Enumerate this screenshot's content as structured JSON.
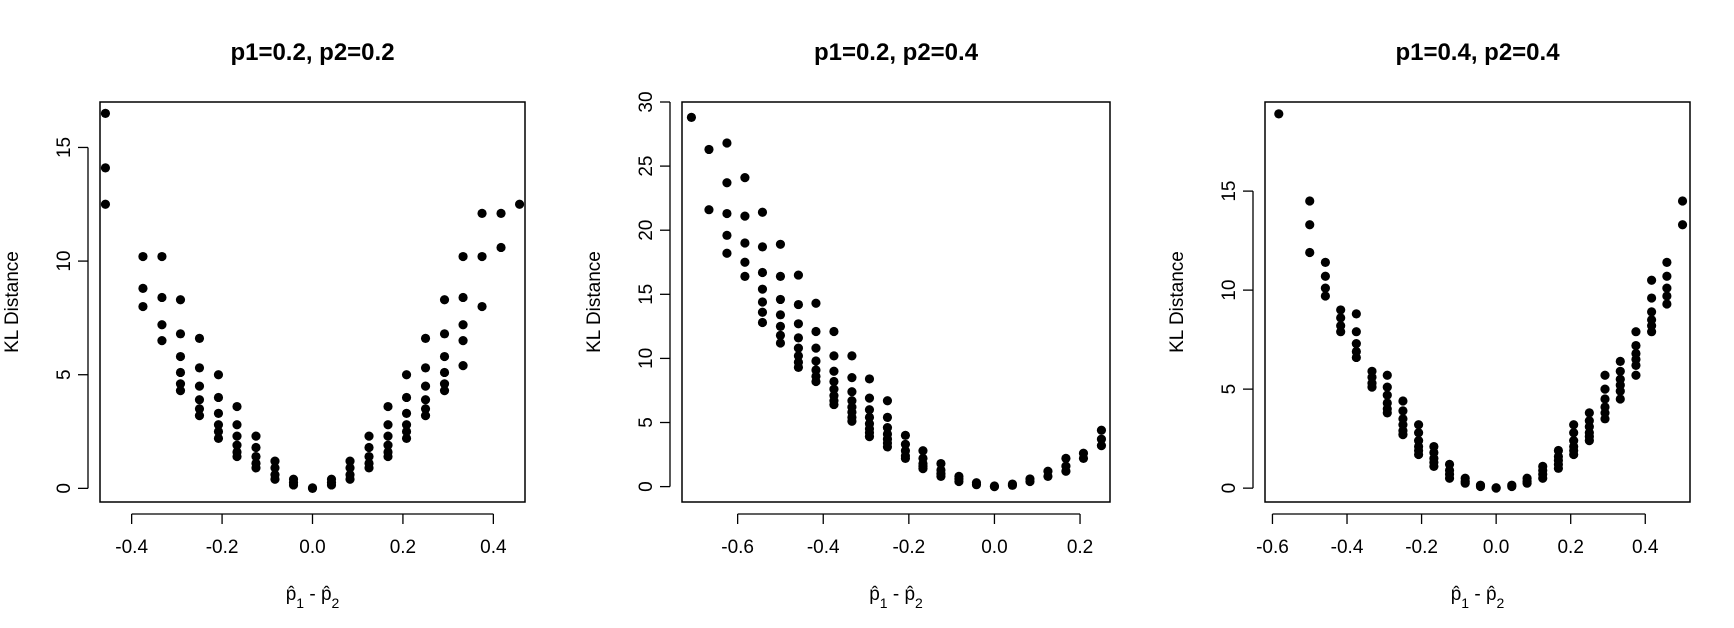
{
  "chart_data": [
    {
      "type": "scatter",
      "title": "p1=0.2, p2=0.2",
      "xlabel": "p̂1 - p̂2",
      "ylabel": "KL Distance",
      "xlim": [
        -0.47,
        0.47
      ],
      "ylim": [
        -0.6,
        17
      ],
      "xticks": [
        -0.4,
        -0.2,
        0.0,
        0.2,
        0.4
      ],
      "xtick_labels": [
        "-0.4",
        "-0.2",
        "0.0",
        "0.2",
        "0.4"
      ],
      "yticks": [
        0,
        5,
        10,
        15
      ],
      "ytick_labels": [
        "0",
        "5",
        "10",
        "15"
      ],
      "marker_color": "#000000",
      "points": [
        [
          -0.458,
          16.5
        ],
        [
          -0.458,
          14.1
        ],
        [
          -0.458,
          12.5
        ],
        [
          -0.375,
          10.2
        ],
        [
          -0.375,
          8.8
        ],
        [
          -0.375,
          8.0
        ],
        [
          -0.333,
          10.2
        ],
        [
          -0.333,
          8.4
        ],
        [
          -0.333,
          7.2
        ],
        [
          -0.333,
          6.5
        ],
        [
          -0.292,
          8.3
        ],
        [
          -0.292,
          6.8
        ],
        [
          -0.292,
          5.8
        ],
        [
          -0.292,
          5.1
        ],
        [
          -0.292,
          4.6
        ],
        [
          -0.292,
          4.3
        ],
        [
          -0.25,
          6.6
        ],
        [
          -0.25,
          5.3
        ],
        [
          -0.25,
          4.5
        ],
        [
          -0.25,
          3.9
        ],
        [
          -0.25,
          3.5
        ],
        [
          -0.25,
          3.2
        ],
        [
          -0.208,
          5.0
        ],
        [
          -0.208,
          4.0
        ],
        [
          -0.208,
          3.3
        ],
        [
          -0.208,
          2.8
        ],
        [
          -0.208,
          2.5
        ],
        [
          -0.208,
          2.2
        ],
        [
          -0.167,
          3.6
        ],
        [
          -0.167,
          2.8
        ],
        [
          -0.167,
          2.3
        ],
        [
          -0.167,
          1.9
        ],
        [
          -0.167,
          1.6
        ],
        [
          -0.167,
          1.4
        ],
        [
          -0.125,
          2.3
        ],
        [
          -0.125,
          1.8
        ],
        [
          -0.125,
          1.4
        ],
        [
          -0.125,
          1.1
        ],
        [
          -0.125,
          0.9
        ],
        [
          -0.083,
          1.2
        ],
        [
          -0.083,
          0.9
        ],
        [
          -0.083,
          0.6
        ],
        [
          -0.083,
          0.4
        ],
        [
          -0.042,
          0.4
        ],
        [
          -0.042,
          0.25
        ],
        [
          -0.042,
          0.15
        ],
        [
          0.0,
          0.02
        ],
        [
          0.0,
          0.0
        ],
        [
          0.042,
          0.4
        ],
        [
          0.042,
          0.25
        ],
        [
          0.042,
          0.15
        ],
        [
          0.083,
          1.2
        ],
        [
          0.083,
          0.9
        ],
        [
          0.083,
          0.6
        ],
        [
          0.083,
          0.4
        ],
        [
          0.125,
          2.3
        ],
        [
          0.125,
          1.8
        ],
        [
          0.125,
          1.4
        ],
        [
          0.125,
          1.1
        ],
        [
          0.125,
          0.9
        ],
        [
          0.167,
          3.6
        ],
        [
          0.167,
          2.8
        ],
        [
          0.167,
          2.3
        ],
        [
          0.167,
          1.9
        ],
        [
          0.167,
          1.6
        ],
        [
          0.167,
          1.4
        ],
        [
          0.208,
          5.0
        ],
        [
          0.208,
          4.0
        ],
        [
          0.208,
          3.3
        ],
        [
          0.208,
          2.8
        ],
        [
          0.208,
          2.5
        ],
        [
          0.208,
          2.2
        ],
        [
          0.25,
          6.6
        ],
        [
          0.25,
          5.3
        ],
        [
          0.25,
          4.5
        ],
        [
          0.25,
          3.9
        ],
        [
          0.25,
          3.5
        ],
        [
          0.25,
          3.2
        ],
        [
          0.292,
          8.3
        ],
        [
          0.292,
          6.8
        ],
        [
          0.292,
          5.8
        ],
        [
          0.292,
          5.1
        ],
        [
          0.292,
          4.6
        ],
        [
          0.292,
          4.3
        ],
        [
          0.333,
          10.2
        ],
        [
          0.333,
          8.4
        ],
        [
          0.333,
          7.2
        ],
        [
          0.333,
          6.5
        ],
        [
          0.333,
          5.4
        ],
        [
          0.375,
          12.1
        ],
        [
          0.375,
          10.2
        ],
        [
          0.375,
          8.0
        ],
        [
          0.417,
          12.1
        ],
        [
          0.417,
          10.6
        ],
        [
          0.458,
          12.5
        ]
      ]
    },
    {
      "type": "scatter",
      "title": "p1=0.2, p2=0.4",
      "xlabel": "p̂1 - p̂2",
      "ylabel": "KL Distance",
      "xlim": [
        -0.73,
        0.27
      ],
      "ylim": [
        -1.2,
        30
      ],
      "xticks": [
        -0.6,
        -0.4,
        -0.2,
        0.0,
        0.2
      ],
      "xtick_labels": [
        "-0.6",
        "-0.4",
        "-0.2",
        "0.0",
        "0.2"
      ],
      "yticks": [
        0,
        5,
        10,
        15,
        20,
        25,
        30
      ],
      "ytick_labels": [
        "0",
        "5",
        "10",
        "15",
        "20",
        "25",
        "30"
      ],
      "marker_color": "#000000",
      "points": [
        [
          -0.708,
          28.8
        ],
        [
          -0.667,
          26.3
        ],
        [
          -0.667,
          21.6
        ],
        [
          -0.625,
          26.8
        ],
        [
          -0.625,
          23.7
        ],
        [
          -0.625,
          21.3
        ],
        [
          -0.625,
          19.6
        ],
        [
          -0.625,
          18.2
        ],
        [
          -0.583,
          24.1
        ],
        [
          -0.583,
          21.1
        ],
        [
          -0.583,
          19.0
        ],
        [
          -0.583,
          17.5
        ],
        [
          -0.583,
          16.4
        ],
        [
          -0.542,
          21.4
        ],
        [
          -0.542,
          18.7
        ],
        [
          -0.542,
          16.7
        ],
        [
          -0.542,
          15.4
        ],
        [
          -0.542,
          14.4
        ],
        [
          -0.542,
          13.6
        ],
        [
          -0.542,
          12.8
        ],
        [
          -0.5,
          18.9
        ],
        [
          -0.5,
          16.4
        ],
        [
          -0.5,
          14.6
        ],
        [
          -0.5,
          13.4
        ],
        [
          -0.5,
          12.5
        ],
        [
          -0.5,
          11.8
        ],
        [
          -0.5,
          11.2
        ],
        [
          -0.458,
          16.5
        ],
        [
          -0.458,
          14.2
        ],
        [
          -0.458,
          12.7
        ],
        [
          -0.458,
          11.6
        ],
        [
          -0.458,
          10.8
        ],
        [
          -0.458,
          10.2
        ],
        [
          -0.458,
          9.7
        ],
        [
          -0.458,
          9.3
        ],
        [
          -0.417,
          14.3
        ],
        [
          -0.417,
          12.1
        ],
        [
          -0.417,
          10.8
        ],
        [
          -0.417,
          9.8
        ],
        [
          -0.417,
          9.1
        ],
        [
          -0.417,
          8.6
        ],
        [
          -0.417,
          8.2
        ],
        [
          -0.375,
          12.1
        ],
        [
          -0.375,
          10.2
        ],
        [
          -0.375,
          9.0
        ],
        [
          -0.375,
          8.2
        ],
        [
          -0.375,
          7.6
        ],
        [
          -0.375,
          7.1
        ],
        [
          -0.375,
          6.7
        ],
        [
          -0.375,
          6.4
        ],
        [
          -0.333,
          10.2
        ],
        [
          -0.333,
          8.5
        ],
        [
          -0.333,
          7.4
        ],
        [
          -0.333,
          6.7
        ],
        [
          -0.333,
          6.2
        ],
        [
          -0.333,
          5.8
        ],
        [
          -0.333,
          5.4
        ],
        [
          -0.333,
          5.1
        ],
        [
          -0.292,
          8.4
        ],
        [
          -0.292,
          6.9
        ],
        [
          -0.292,
          6.0
        ],
        [
          -0.292,
          5.4
        ],
        [
          -0.292,
          4.9
        ],
        [
          -0.292,
          4.5
        ],
        [
          -0.292,
          4.2
        ],
        [
          -0.292,
          3.9
        ],
        [
          -0.25,
          6.7
        ],
        [
          -0.25,
          5.4
        ],
        [
          -0.25,
          4.6
        ],
        [
          -0.25,
          4.1
        ],
        [
          -0.25,
          3.7
        ],
        [
          -0.25,
          3.4
        ],
        [
          -0.25,
          3.1
        ],
        [
          -0.208,
          4.0
        ],
        [
          -0.208,
          3.3
        ],
        [
          -0.208,
          2.8
        ],
        [
          -0.208,
          2.4
        ],
        [
          -0.208,
          2.2
        ],
        [
          -0.167,
          2.8
        ],
        [
          -0.167,
          2.2
        ],
        [
          -0.167,
          1.8
        ],
        [
          -0.167,
          1.6
        ],
        [
          -0.167,
          1.4
        ],
        [
          -0.125,
          1.8
        ],
        [
          -0.125,
          1.3
        ],
        [
          -0.125,
          1.0
        ],
        [
          -0.125,
          0.8
        ],
        [
          -0.083,
          0.8
        ],
        [
          -0.083,
          0.6
        ],
        [
          -0.083,
          0.4
        ],
        [
          -0.042,
          0.3
        ],
        [
          -0.042,
          0.15
        ],
        [
          0.0,
          0.05
        ],
        [
          0.0,
          0.0
        ],
        [
          0.042,
          0.2
        ],
        [
          0.042,
          0.1
        ],
        [
          0.083,
          0.6
        ],
        [
          0.083,
          0.4
        ],
        [
          0.125,
          1.2
        ],
        [
          0.125,
          0.8
        ],
        [
          0.167,
          2.2
        ],
        [
          0.167,
          1.6
        ],
        [
          0.167,
          1.2
        ],
        [
          0.208,
          2.6
        ],
        [
          0.208,
          2.2
        ],
        [
          0.25,
          4.4
        ],
        [
          0.25,
          3.7
        ],
        [
          0.25,
          3.2
        ]
      ]
    },
    {
      "type": "scatter",
      "title": "p1=0.4, p2=0.4",
      "xlabel": "p̂1 - p̂2",
      "ylabel": "KL Distance",
      "xlim": [
        -0.62,
        0.52
      ],
      "ylim": [
        -0.7,
        19.5
      ],
      "xticks": [
        -0.6,
        -0.4,
        -0.2,
        0.0,
        0.2,
        0.4
      ],
      "xtick_labels": [
        "-0.6",
        "-0.4",
        "-0.2",
        "0.0",
        "0.2",
        "0.4"
      ],
      "yticks": [
        0,
        5,
        10,
        15
      ],
      "ytick_labels": [
        "0",
        "5",
        "10",
        "15"
      ],
      "marker_color": "#000000",
      "points": [
        [
          -0.583,
          18.9
        ],
        [
          -0.5,
          14.5
        ],
        [
          -0.5,
          13.3
        ],
        [
          -0.5,
          11.9
        ],
        [
          -0.458,
          11.4
        ],
        [
          -0.458,
          10.7
        ],
        [
          -0.458,
          10.1
        ],
        [
          -0.458,
          9.7
        ],
        [
          -0.417,
          9.0
        ],
        [
          -0.417,
          8.6
        ],
        [
          -0.417,
          8.2
        ],
        [
          -0.417,
          7.9
        ],
        [
          -0.375,
          8.8
        ],
        [
          -0.375,
          7.9
        ],
        [
          -0.375,
          7.3
        ],
        [
          -0.375,
          6.9
        ],
        [
          -0.375,
          6.6
        ],
        [
          -0.333,
          5.9
        ],
        [
          -0.333,
          5.6
        ],
        [
          -0.333,
          5.3
        ],
        [
          -0.333,
          5.1
        ],
        [
          -0.292,
          5.7
        ],
        [
          -0.292,
          5.1
        ],
        [
          -0.292,
          4.7
        ],
        [
          -0.292,
          4.3
        ],
        [
          -0.292,
          4.0
        ],
        [
          -0.292,
          3.8
        ],
        [
          -0.25,
          4.4
        ],
        [
          -0.25,
          3.9
        ],
        [
          -0.25,
          3.5
        ],
        [
          -0.25,
          3.2
        ],
        [
          -0.25,
          2.9
        ],
        [
          -0.25,
          2.7
        ],
        [
          -0.208,
          3.2
        ],
        [
          -0.208,
          2.8
        ],
        [
          -0.208,
          2.4
        ],
        [
          -0.208,
          2.1
        ],
        [
          -0.208,
          1.9
        ],
        [
          -0.208,
          1.7
        ],
        [
          -0.167,
          2.1
        ],
        [
          -0.167,
          1.8
        ],
        [
          -0.167,
          1.5
        ],
        [
          -0.167,
          1.3
        ],
        [
          -0.167,
          1.1
        ],
        [
          -0.125,
          1.2
        ],
        [
          -0.125,
          0.9
        ],
        [
          -0.125,
          0.7
        ],
        [
          -0.125,
          0.5
        ],
        [
          -0.083,
          0.5
        ],
        [
          -0.083,
          0.35
        ],
        [
          -0.083,
          0.25
        ],
        [
          -0.042,
          0.15
        ],
        [
          -0.042,
          0.08
        ],
        [
          0.0,
          0.02
        ],
        [
          0.0,
          0.0
        ],
        [
          0.042,
          0.15
        ],
        [
          0.042,
          0.08
        ],
        [
          0.083,
          0.5
        ],
        [
          0.083,
          0.35
        ],
        [
          0.083,
          0.25
        ],
        [
          0.125,
          1.1
        ],
        [
          0.125,
          0.9
        ],
        [
          0.125,
          0.7
        ],
        [
          0.125,
          0.5
        ],
        [
          0.167,
          1.9
        ],
        [
          0.167,
          1.6
        ],
        [
          0.167,
          1.4
        ],
        [
          0.167,
          1.2
        ],
        [
          0.167,
          1.0
        ],
        [
          0.208,
          3.2
        ],
        [
          0.208,
          2.8
        ],
        [
          0.208,
          2.4
        ],
        [
          0.208,
          2.1
        ],
        [
          0.208,
          1.9
        ],
        [
          0.208,
          1.7
        ],
        [
          0.25,
          3.8
        ],
        [
          0.25,
          3.4
        ],
        [
          0.25,
          3.1
        ],
        [
          0.25,
          2.8
        ],
        [
          0.25,
          2.6
        ],
        [
          0.25,
          2.4
        ],
        [
          0.292,
          5.7
        ],
        [
          0.292,
          5.0
        ],
        [
          0.292,
          4.5
        ],
        [
          0.292,
          4.1
        ],
        [
          0.292,
          3.8
        ],
        [
          0.292,
          3.5
        ],
        [
          0.333,
          6.4
        ],
        [
          0.333,
          5.9
        ],
        [
          0.333,
          5.5
        ],
        [
          0.333,
          5.2
        ],
        [
          0.333,
          4.9
        ],
        [
          0.333,
          4.5
        ],
        [
          0.375,
          7.9
        ],
        [
          0.375,
          7.2
        ],
        [
          0.375,
          6.8
        ],
        [
          0.375,
          6.5
        ],
        [
          0.375,
          6.2
        ],
        [
          0.375,
          5.7
        ],
        [
          0.417,
          10.5
        ],
        [
          0.417,
          9.6
        ],
        [
          0.417,
          8.9
        ],
        [
          0.417,
          8.5
        ],
        [
          0.417,
          8.2
        ],
        [
          0.417,
          7.9
        ],
        [
          0.458,
          11.4
        ],
        [
          0.458,
          10.7
        ],
        [
          0.458,
          10.1
        ],
        [
          0.458,
          9.7
        ],
        [
          0.458,
          9.3
        ],
        [
          0.5,
          14.5
        ],
        [
          0.5,
          13.3
        ]
      ]
    }
  ]
}
